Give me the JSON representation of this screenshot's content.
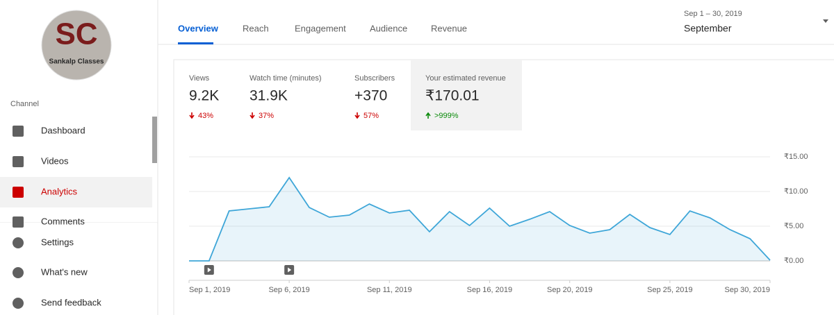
{
  "sidebar": {
    "logo_initials": "SC",
    "logo_text": "Sankalp Classes",
    "section": "Channel",
    "items": [
      "Dashboard",
      "Videos",
      "Analytics",
      "Comments"
    ],
    "active": 2,
    "footer_items": [
      "Settings",
      "What's new",
      "Send feedback"
    ]
  },
  "tabs": [
    "Overview",
    "Reach",
    "Engagement",
    "Audience",
    "Revenue"
  ],
  "active_tab": 0,
  "date_range": {
    "range": "Sep 1 – 30, 2019",
    "label": "September"
  },
  "metrics": [
    {
      "label": "Views",
      "value": "9.2K",
      "change": "43%",
      "direction": "down"
    },
    {
      "label": "Watch time (minutes)",
      "value": "31.9K",
      "change": "37%",
      "direction": "down"
    },
    {
      "label": "Subscribers",
      "value": "+370",
      "change": "57%",
      "direction": "down"
    },
    {
      "label": "Your estimated revenue",
      "value": "₹170.01",
      "change": ">999%",
      "direction": "up"
    }
  ],
  "chart": {
    "type": "line",
    "color": "#3ea6d8",
    "x": [
      1,
      2,
      3,
      4,
      5,
      6,
      7,
      8,
      9,
      10,
      11,
      12,
      13,
      14,
      15,
      16,
      17,
      18,
      19,
      20,
      21,
      22,
      23,
      24,
      25,
      26,
      27,
      28,
      29,
      30
    ],
    "values": [
      0,
      0,
      7.2,
      7.5,
      7.8,
      12,
      7.7,
      6.3,
      6.6,
      8.2,
      6.9,
      7.3,
      4.2,
      7.1,
      5.1,
      7.6,
      5,
      6,
      7.1,
      5.1,
      4,
      4.5,
      6.7,
      4.8,
      3.8,
      7.2,
      6.2,
      4.5,
      3.2,
      0.1
    ],
    "xlim": [
      1,
      30
    ],
    "xticks": [
      {
        "value": 1,
        "label": "Sep 1, 2019"
      },
      {
        "value": 6,
        "label": "Sep 6, 2019"
      },
      {
        "value": 11,
        "label": "Sep 11, 2019"
      },
      {
        "value": 16,
        "label": "Sep 16, 2019"
      },
      {
        "value": 20,
        "label": "Sep 20, 2019"
      },
      {
        "value": 25,
        "label": "Sep 25, 2019"
      },
      {
        "value": 30,
        "label": "Sep 30, 2019"
      }
    ],
    "ylim": [
      0,
      15
    ],
    "yticks": [
      {
        "value": 0,
        "label": "₹0.00"
      },
      {
        "value": 5,
        "label": "₹5.00"
      },
      {
        "value": 10,
        "label": "₹10.00"
      },
      {
        "value": 15,
        "label": "₹15.00"
      }
    ],
    "grid": true,
    "video_markers": [
      2,
      6
    ]
  }
}
